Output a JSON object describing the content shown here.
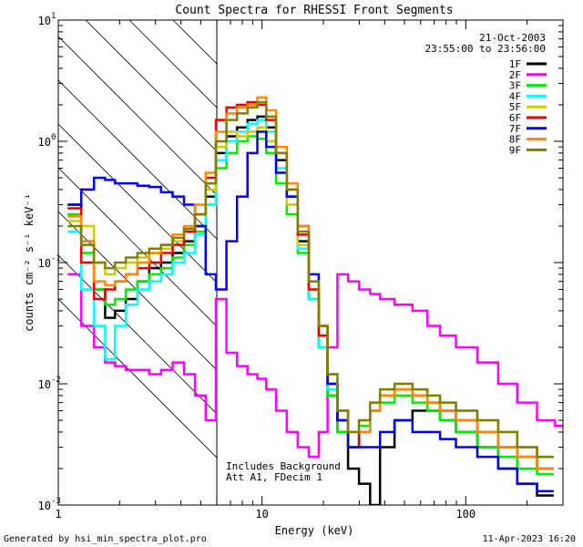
{
  "chart_data": {
    "type": "line",
    "title": "Count Spectra for RHESSI Front Segments",
    "xlabel": "Energy (keV)",
    "ylabel": "counts cm⁻² s⁻¹ keV⁻¹",
    "xscale": "log",
    "yscale": "log",
    "xlim": [
      1,
      300
    ],
    "ylim": [
      0.001,
      10
    ],
    "x_ticks": [
      {
        "value": 1,
        "label": "1"
      },
      {
        "value": 10,
        "label": "10"
      },
      {
        "value": 100,
        "label": "100"
      }
    ],
    "y_ticks": [
      {
        "value": 0.001,
        "base": "10",
        "exp": "-3"
      },
      {
        "value": 0.01,
        "base": "10",
        "exp": "-2"
      },
      {
        "value": 0.1,
        "base": "10",
        "exp": "-1"
      },
      {
        "value": 1,
        "base": "10",
        "exp": "0"
      },
      {
        "value": 10,
        "base": "10",
        "exp": "1"
      }
    ],
    "legend": {
      "position": "top-right",
      "date": "21-Oct-2003",
      "time_range": "23:55:00 to 23:56:00"
    },
    "shaded_region": {
      "x_from": 1,
      "x_to": 6,
      "pattern": "diagonal-hatch"
    },
    "annotations": [
      "Includes Background",
      "Att A1, FDecim 1"
    ],
    "footer_left": "Generated by hsi_min_spectra_plot.pro",
    "footer_right": "11-Apr-2023 16:20",
    "series": [
      {
        "name": "1F",
        "color": "#000000",
        "x": [
          1.2,
          1.4,
          1.6,
          1.8,
          2.0,
          2.3,
          2.6,
          3.0,
          3.4,
          3.9,
          4.4,
          5.0,
          5.6,
          6.3,
          7.1,
          8.0,
          9.0,
          10.0,
          11.0,
          12.5,
          14.0,
          16.0,
          18.0,
          20.0,
          22.0,
          25.0,
          28.0,
          32.0,
          36.0,
          40.0,
          50.0,
          60.0,
          70.0,
          80.0,
          100.0,
          130.0,
          160.0,
          200.0,
          250.0
        ],
        "values": [
          0.3,
          0.15,
          0.06,
          0.035,
          0.04,
          0.05,
          0.07,
          0.09,
          0.1,
          0.12,
          0.15,
          0.2,
          0.35,
          0.8,
          1.1,
          1.3,
          1.5,
          1.6,
          1.3,
          0.7,
          0.35,
          0.15,
          0.05,
          0.02,
          0.008,
          0.004,
          0.002,
          0.0015,
          0.001,
          0.003,
          0.005,
          0.006,
          0.006,
          0.005,
          0.004,
          0.003,
          0.002,
          0.0015,
          0.0012
        ]
      },
      {
        "name": "2F",
        "color": "#ff00ff",
        "x": [
          1.2,
          1.4,
          1.6,
          1.8,
          2.0,
          2.3,
          2.6,
          3.0,
          3.4,
          3.9,
          4.4,
          5.0,
          5.6,
          6.3,
          7.1,
          8.0,
          9.0,
          10.0,
          11.0,
          12.5,
          14.0,
          16.0,
          18.0,
          20.0,
          22.0,
          25.0,
          28.0,
          32.0,
          36.0,
          40.0,
          50.0,
          60.0,
          70.0,
          80.0,
          100.0,
          130.0,
          160.0,
          200.0,
          250.0,
          300.0
        ],
        "values": [
          0.08,
          0.03,
          0.02,
          0.015,
          0.014,
          0.013,
          0.013,
          0.012,
          0.013,
          0.015,
          0.012,
          0.008,
          0.005,
          0.05,
          0.018,
          0.014,
          0.012,
          0.011,
          0.009,
          0.006,
          0.004,
          0.003,
          0.0025,
          0.004,
          0.02,
          0.08,
          0.07,
          0.06,
          0.055,
          0.05,
          0.045,
          0.04,
          0.03,
          0.025,
          0.02,
          0.015,
          0.01,
          0.007,
          0.005,
          0.0045
        ]
      },
      {
        "name": "3F",
        "color": "#00ee00",
        "x": [
          1.2,
          1.4,
          1.6,
          1.8,
          2.0,
          2.3,
          2.6,
          3.0,
          3.4,
          3.9,
          4.4,
          5.0,
          5.6,
          6.3,
          7.1,
          8.0,
          9.0,
          10.0,
          11.0,
          12.5,
          14.0,
          16.0,
          18.0,
          20.0,
          22.0,
          25.0,
          28.0,
          32.0,
          36.0,
          40.0,
          50.0,
          60.0,
          70.0,
          80.0,
          100.0,
          130.0,
          160.0,
          200.0,
          250.0
        ],
        "values": [
          0.25,
          0.12,
          0.06,
          0.045,
          0.05,
          0.06,
          0.07,
          0.08,
          0.09,
          0.11,
          0.14,
          0.18,
          0.3,
          0.6,
          0.8,
          1.0,
          1.1,
          1.05,
          0.8,
          0.45,
          0.25,
          0.12,
          0.05,
          0.02,
          0.008,
          0.004,
          0.003,
          0.0045,
          0.006,
          0.007,
          0.008,
          0.007,
          0.006,
          0.005,
          0.004,
          0.003,
          0.0025,
          0.002,
          0.0018
        ]
      },
      {
        "name": "4F",
        "color": "#00ffff",
        "x": [
          1.2,
          1.4,
          1.6,
          1.8,
          2.0,
          2.3,
          2.6,
          3.0,
          3.4,
          3.9,
          4.4,
          5.0,
          5.6,
          6.3,
          7.1,
          8.0,
          9.0,
          10.0,
          11.0,
          12.5,
          14.0,
          16.0,
          18.0,
          20.0,
          22.0,
          25.0,
          28.0,
          32.0,
          36.0,
          40.0,
          50.0,
          60.0,
          70.0,
          80.0,
          100.0,
          130.0,
          160.0,
          200.0,
          250.0
        ],
        "values": [
          0.18,
          0.06,
          0.03,
          0.016,
          0.03,
          0.045,
          0.06,
          0.07,
          0.08,
          0.1,
          0.12,
          0.17,
          0.3,
          0.7,
          1.0,
          1.2,
          1.4,
          1.5,
          1.2,
          0.6,
          0.3,
          0.13,
          0.05,
          0.02,
          0.009,
          0.005,
          0.003,
          0.004,
          0.006,
          0.008,
          0.009,
          0.008,
          0.007,
          0.006,
          0.005,
          0.004,
          0.003,
          0.0025,
          0.002
        ]
      },
      {
        "name": "5F",
        "color": "#cccc00",
        "x": [
          1.2,
          1.4,
          1.6,
          1.8,
          2.0,
          2.3,
          2.6,
          3.0,
          3.4,
          3.9,
          4.4,
          5.0,
          5.6,
          6.3,
          7.1,
          8.0,
          9.0,
          10.0,
          11.0,
          12.5,
          14.0,
          16.0,
          18.0,
          20.0,
          22.0,
          25.0,
          28.0,
          32.0,
          36.0,
          40.0,
          50.0,
          60.0,
          70.0,
          80.0,
          100.0,
          130.0,
          160.0,
          200.0,
          250.0
        ],
        "values": [
          0.22,
          0.2,
          0.1,
          0.08,
          0.09,
          0.1,
          0.11,
          0.12,
          0.13,
          0.15,
          0.18,
          0.25,
          0.4,
          0.9,
          1.2,
          1.1,
          1.2,
          1.3,
          1.0,
          0.55,
          0.3,
          0.14,
          0.06,
          0.025,
          0.01,
          0.006,
          0.004,
          0.005,
          0.007,
          0.009,
          0.01,
          0.009,
          0.008,
          0.007,
          0.006,
          0.005,
          0.004,
          0.003,
          0.0025
        ]
      },
      {
        "name": "6F",
        "color": "#ee0000",
        "x": [
          1.2,
          1.4,
          1.6,
          1.8,
          2.0,
          2.3,
          2.6,
          3.0,
          3.4,
          3.9,
          4.4,
          5.0,
          5.6,
          6.3,
          7.1,
          8.0,
          9.0,
          10.0,
          11.0,
          12.5,
          14.0,
          16.0,
          18.0,
          20.0,
          22.0,
          25.0,
          28.0,
          32.0,
          36.0,
          40.0,
          50.0,
          60.0,
          70.0,
          80.0,
          100.0,
          130.0,
          160.0,
          200.0,
          250.0
        ],
        "values": [
          0.28,
          0.1,
          0.05,
          0.06,
          0.07,
          0.08,
          0.09,
          0.1,
          0.12,
          0.14,
          0.18,
          0.25,
          0.5,
          1.5,
          1.9,
          2.0,
          2.1,
          2.0,
          1.5,
          0.8,
          0.4,
          0.17,
          0.06,
          0.025,
          0.01,
          0.005,
          0.003,
          0.004,
          0.006,
          0.008,
          0.009,
          0.008,
          0.007,
          0.006,
          0.005,
          0.004,
          0.003,
          0.0025,
          0.002
        ]
      },
      {
        "name": "7F",
        "color": "#0000ee",
        "x": [
          1.2,
          1.4,
          1.6,
          1.8,
          2.0,
          2.3,
          2.6,
          3.0,
          3.4,
          3.9,
          4.4,
          5.0,
          5.6,
          6.3,
          7.1,
          8.0,
          9.0,
          10.0,
          11.0,
          12.5,
          14.0,
          16.0,
          18.0,
          20.0,
          22.0,
          25.0,
          28.0,
          32.0,
          36.0,
          40.0,
          50.0,
          60.0,
          70.0,
          80.0,
          100.0,
          130.0,
          160.0,
          200.0,
          250.0
        ],
        "values": [
          0.3,
          0.4,
          0.5,
          0.48,
          0.45,
          0.45,
          0.43,
          0.42,
          0.38,
          0.35,
          0.3,
          0.2,
          0.08,
          0.06,
          0.15,
          0.35,
          0.8,
          1.2,
          0.9,
          0.55,
          0.35,
          0.2,
          0.08,
          0.03,
          0.01,
          0.005,
          0.003,
          0.003,
          0.003,
          0.004,
          0.005,
          0.004,
          0.004,
          0.0035,
          0.003,
          0.0025,
          0.002,
          0.0015,
          0.0013
        ]
      },
      {
        "name": "8F",
        "color": "#ff8800",
        "x": [
          1.2,
          1.4,
          1.6,
          1.8,
          2.0,
          2.3,
          2.6,
          3.0,
          3.4,
          3.9,
          4.4,
          5.0,
          5.6,
          6.3,
          7.1,
          8.0,
          9.0,
          10.0,
          11.0,
          12.5,
          14.0,
          16.0,
          18.0,
          20.0,
          22.0,
          25.0,
          28.0,
          32.0,
          36.0,
          40.0,
          50.0,
          60.0,
          70.0,
          80.0,
          100.0,
          130.0,
          160.0,
          200.0,
          250.0
        ],
        "values": [
          0.24,
          0.15,
          0.07,
          0.065,
          0.07,
          0.08,
          0.1,
          0.12,
          0.14,
          0.17,
          0.2,
          0.3,
          0.55,
          1.2,
          1.7,
          1.9,
          2.0,
          2.3,
          1.8,
          0.9,
          0.45,
          0.2,
          0.07,
          0.03,
          0.012,
          0.006,
          0.004,
          0.004,
          0.006,
          0.008,
          0.009,
          0.008,
          0.007,
          0.006,
          0.005,
          0.004,
          0.003,
          0.0025,
          0.002
        ]
      },
      {
        "name": "9F",
        "color": "#808000",
        "x": [
          1.2,
          1.4,
          1.6,
          1.8,
          2.0,
          2.3,
          2.6,
          3.0,
          3.4,
          3.9,
          4.4,
          5.0,
          5.6,
          6.3,
          7.1,
          8.0,
          9.0,
          10.0,
          11.0,
          12.5,
          14.0,
          16.0,
          18.0,
          20.0,
          22.0,
          25.0,
          28.0,
          32.0,
          36.0,
          40.0,
          50.0,
          60.0,
          70.0,
          80.0,
          100.0,
          130.0,
          160.0,
          200.0,
          250.0
        ],
        "values": [
          0.2,
          0.14,
          0.1,
          0.09,
          0.1,
          0.11,
          0.12,
          0.13,
          0.14,
          0.16,
          0.19,
          0.25,
          0.45,
          1.0,
          1.5,
          1.7,
          1.9,
          2.1,
          1.6,
          0.8,
          0.4,
          0.18,
          0.07,
          0.03,
          0.012,
          0.006,
          0.004,
          0.005,
          0.007,
          0.009,
          0.01,
          0.009,
          0.008,
          0.007,
          0.006,
          0.005,
          0.004,
          0.003,
          0.0025
        ]
      }
    ]
  }
}
